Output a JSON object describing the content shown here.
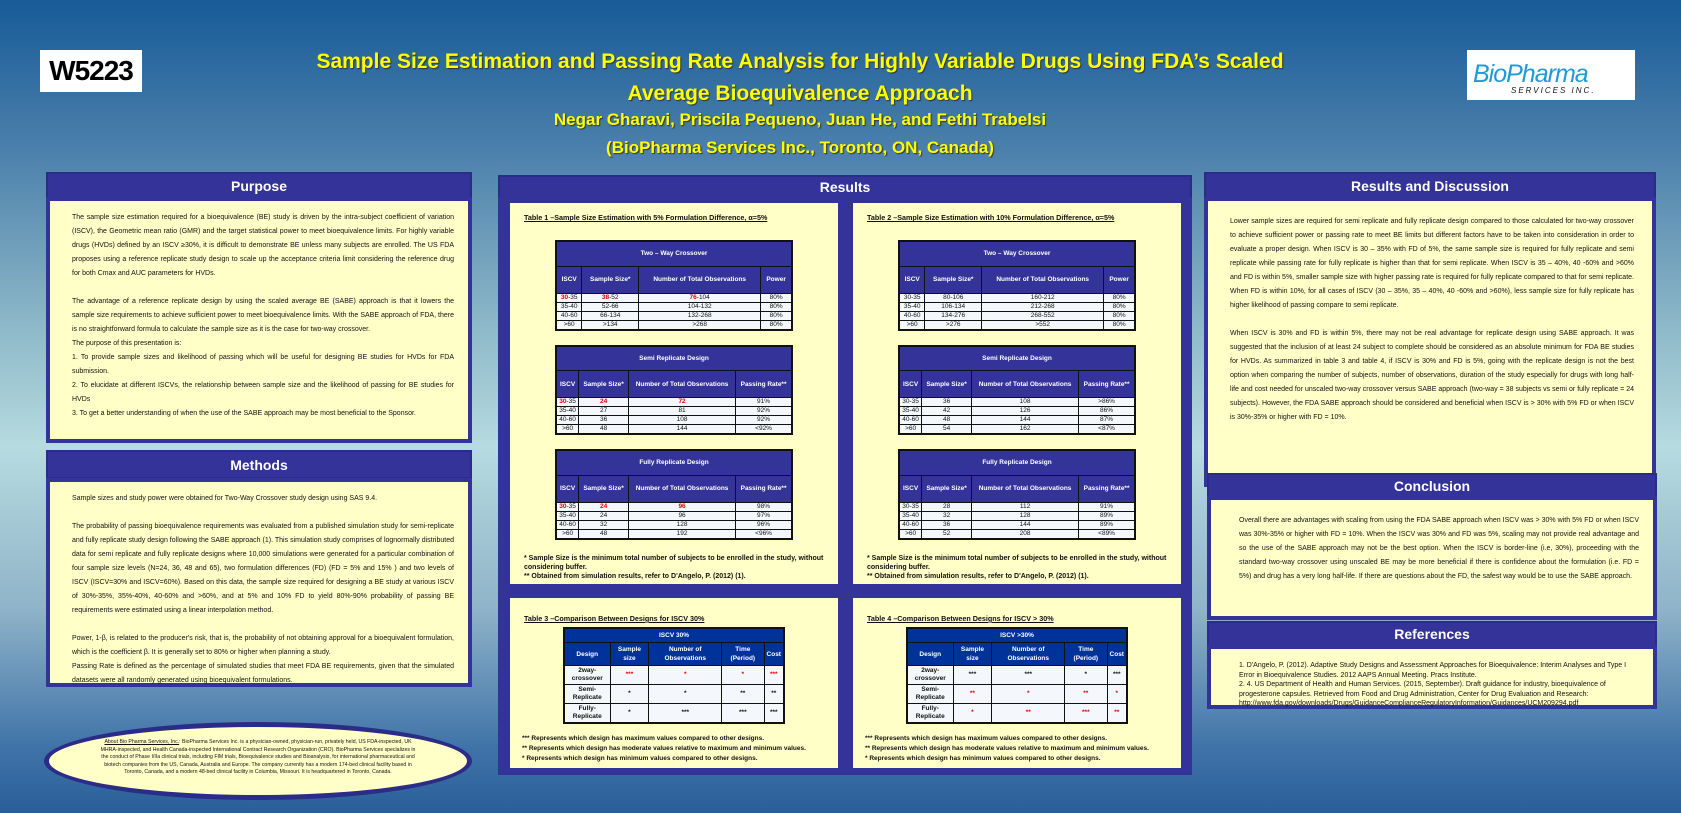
{
  "header": {
    "poster_id": "W5223",
    "title_line1": "Sample Size Estimation and Passing Rate Analysis for Highly Variable Drugs Using FDA’s Scaled",
    "title_line2": "Average Bioequivalence Approach",
    "authors": "Negar Gharavi, Priscila Pequeno,  Juan He, and Fethi Trabelsi",
    "affiliation": "(BioPharma Services Inc., Toronto, ON, Canada)",
    "logo_main": "BioPharma",
    "logo_sub": "SERVICES INC."
  },
  "purpose": {
    "heading": "Purpose",
    "p1": "The sample size estimation required for a bioequivalence (BE) study is driven by the intra-subject coefficient of variation (ISCV), the Geometric mean ratio (GMR) and the target statistical power to meet bioequivalence limits. For highly variable drugs (HVDs) defined by an ISCV ≥30%, it is difficult to demonstrate BE unless many subjects are enrolled. The US FDA proposes using a reference replicate study design to scale up the acceptance criteria limit considering the reference drug for both Cmax and AUC parameters for HVDs.",
    "p2": "The advantage of a reference replicate design by using the scaled average BE (SABE) approach is that it lowers the sample size requirements to achieve sufficient power to meet bioequivalence limits. With the SABE approach of FDA, there is no straightforward formula to calculate the sample size as it is the case for two-way crossover.",
    "p3": "The purpose of this presentation is:",
    "i1": "1. To provide sample sizes and likelihood of passing which will be useful for designing BE studies for HVDs for FDA submission.",
    "i2": "2. To elucidate at different ISCVs, the relationship between sample size and the likelihood of passing for BE studies for HVDs",
    "i3": "3. To get a better understanding of when the use of the SABE approach may be most beneficial to the Sponsor."
  },
  "methods": {
    "heading": "Methods",
    "p1": "Sample sizes and study power were obtained for Two-Way Crossover study design using SAS 9.4.",
    "p2": "The probability of passing bioequivalence requirements was evaluated from a published simulation study for semi-replicate and fully replicate study design following the SABE approach (1). This simulation study comprises of lognormally distributed data for semi replicate and fully replicate designs where 10,000 simulations were generated for a particular combination of four sample size levels (N=24, 36, 48 and 65), two formulation differences (FD) (FD = 5% and 15% ) and two levels of ISCV (ISCV=30% and ISCV=60%). Based on this data, the sample size required for designing a BE study at various ISCV of 30%-35%, 35%-40%, 40-60% and >60%, and at 5% and 10% FD to yield 80%-90% probability of passing BE requirements were estimated using a linear interpolation method.",
    "p3": "Power, 1-β, is related to the producer's risk, that is, the probability of not obtaining approval for a bioequivalent formulation, which is the coefficient β. It is generally set to 80% or higher when planning a study.",
    "p4": "Passing Rate is defined as the percentage of simulated studies that meet FDA BE requirements, given that the simulated datasets were all randomly generated using bioequivalent formulations."
  },
  "about": {
    "label": "About Bio Pharma Services, Inc.",
    "text": ": BioPharma Services Inc. is a physician-owned, physician-run, privately held, US FDA-inspected, UK MHRA-inspected, and Health Canada-inspected International Contract Research Organization (CRO).  BioPharma Services specializes in the conduct of Phase I/IIa clinical trials, including FIM trials, Bioequivalence studies and Bioanalysis, for international pharmaceutical and biotech companies from the US, Canada, Australia and Europe.  The company currently has a modern 174-bed clinical facility based in Toronto, Canada, and a modern 48-bed clinical facility in Columbia, Missouri. It is headquartered in Toronto, Canada."
  },
  "results": {
    "heading": "Results",
    "table1": {
      "caption": "Table 1 –Sample Size Estimation with 5% Formulation Difference, α=5%",
      "blocks": [
        {
          "title": "Two – Way Crossover",
          "cols": [
            "ISCV",
            "Sample Size*",
            "Number of Total Observations",
            "Power"
          ],
          "rows": [
            [
              "30-35",
              "38-52",
              "76-104",
              "80%"
            ],
            [
              "35-40",
              "52-66",
              "104-132",
              "80%"
            ],
            [
              "40-60",
              "66-134",
              "132-268",
              "80%"
            ],
            [
              ">60",
              ">134",
              ">268",
              "80%"
            ]
          ],
          "red": [
            "30",
            "38",
            "76",
            ""
          ]
        },
        {
          "title": "Semi Replicate Design",
          "cols": [
            "ISCV",
            "Sample Size*",
            "Number of Total Observations",
            "Passing Rate**"
          ],
          "rows": [
            [
              "30-35",
              "24",
              "72",
              "91%"
            ],
            [
              "35-40",
              "27",
              "81",
              "92%"
            ],
            [
              "40-60",
              "36",
              "108",
              "92%"
            ],
            [
              ">60",
              "48",
              "144",
              "<92%"
            ]
          ],
          "red": [
            "30",
            "24",
            "72",
            ""
          ]
        },
        {
          "title": "Fully Replicate Design",
          "cols": [
            "ISCV",
            "Sample Size*",
            "Number of Total Observations",
            "Passing Rate**"
          ],
          "rows": [
            [
              "30-35",
              "24",
              "96",
              "98%"
            ],
            [
              "35-40",
              "24",
              "96",
              "97%"
            ],
            [
              "40-60",
              "32",
              "128",
              "96%"
            ],
            [
              ">60",
              "48",
              "192",
              "<96%"
            ]
          ],
          "red": [
            "30",
            "24",
            "96",
            ""
          ]
        }
      ],
      "note1": "* Sample Size is the minimum total number of subjects to be enrolled in the study, without considering buffer.",
      "note2": "** Obtained from simulation results, refer to D'Angelo, P. (2012) (1)."
    },
    "table2": {
      "caption": "Table 2 –Sample Size Estimation with 10% Formulation Difference, α=5%",
      "blocks": [
        {
          "title": "Two – Way Crossover",
          "cols": [
            "ISCV",
            "Sample Size*",
            "Number of Total Observations",
            "Power"
          ],
          "rows": [
            [
              "30-35",
              "80-106",
              "160-212",
              "80%"
            ],
            [
              "35-40",
              "106-134",
              "212-268",
              "80%"
            ],
            [
              "40-60",
              "134-276",
              "268-552",
              "80%"
            ],
            [
              ">60",
              ">276",
              ">552",
              "80%"
            ]
          ],
          "red": [
            "",
            "",
            "",
            ""
          ]
        },
        {
          "title": "Semi Replicate Design",
          "cols": [
            "ISCV",
            "Sample Size*",
            "Number of Total Observations",
            "Passing Rate**"
          ],
          "rows": [
            [
              "30-35",
              "36",
              "108",
              ">86%"
            ],
            [
              "35-40",
              "42",
              "126",
              "86%"
            ],
            [
              "40-60",
              "48",
              "144",
              "87%"
            ],
            [
              ">60",
              "54",
              "162",
              "<87%"
            ]
          ],
          "red": [
            "",
            "",
            "",
            ""
          ]
        },
        {
          "title": "Fully Replicate Design",
          "cols": [
            "ISCV",
            "Sample Size*",
            "Number of Total Observations",
            "Passing Rate**"
          ],
          "rows": [
            [
              "30-35",
              "28",
              "112",
              "91%"
            ],
            [
              "35-40",
              "32",
              "128",
              "89%"
            ],
            [
              "40-60",
              "36",
              "144",
              "89%"
            ],
            [
              ">60",
              "52",
              "208",
              "<89%"
            ]
          ],
          "red": [
            "",
            "",
            "",
            ""
          ]
        }
      ],
      "note1": "* Sample Size is the minimum total number of subjects to be enrolled in the study, without considering buffer.",
      "note2": "** Obtained from simulation results, refer to D'Angelo, P. (2012) (1)."
    },
    "table3": {
      "caption": "Table 3 –Comparison Between Designs for ISCV 30%",
      "group": "ISCV 30%",
      "cols": [
        "Design",
        "Sample size",
        "Number of Observations",
        "Time (Period)",
        "Cost"
      ],
      "rows": [
        {
          "cells": [
            "2way-crossover",
            "***",
            "*",
            "*",
            "***"
          ],
          "red": true
        },
        {
          "cells": [
            "Semi-Replicate",
            "*",
            "*",
            "**",
            "**"
          ],
          "red": false
        },
        {
          "cells": [
            "Fully-Replicate",
            "*",
            "***",
            "***",
            "***"
          ],
          "red": false
        }
      ]
    },
    "table4": {
      "caption": "Table 4 –Comparison Between Designs for ISCV > 30%",
      "group": "ISCV >30%",
      "cols": [
        "Design",
        "Sample size",
        "Number of Observations",
        "Time (Period)",
        "Cost"
      ],
      "rows": [
        {
          "cells": [
            "2way-crossover",
            "***",
            "***",
            "*",
            "***"
          ],
          "red": false
        },
        {
          "cells": [
            "Semi-Replicate",
            "**",
            "*",
            "**",
            "*"
          ],
          "red": true
        },
        {
          "cells": [
            "Fully-Replicate",
            "*",
            "**",
            "***",
            "**"
          ],
          "red": true
        }
      ]
    },
    "legend": {
      "l1": "*** Represents which design has maximum values compared to other designs.",
      "l2": "** Represents which design has moderate values relative to maximum and minimum values.",
      "l3": "* Represents which design has minimum values compared to other designs."
    }
  },
  "discussion": {
    "heading": "Results and Discussion",
    "p1": "Lower sample sizes are required for semi replicate and fully replicate design compared to those calculated for two-way crossover to achieve sufficient power or passing rate to meet BE limits but different factors have to be taken into consideration in order to evaluate a proper design. When ISCV is 30 – 35% with FD of 5%, the same sample size is required for fully replicate and semi replicate while passing rate for fully replicate is higher than that for semi replicate. When ISCV is 35 – 40%, 40 -60% and >60% and FD is within 5%, smaller sample size with higher passing rate is required for fully replicate compared to that for semi replicate. When FD is within 10%, for all cases of ISCV (30 – 35%, 35 – 40%, 40 -60% and >60%), less sample size for fully replicate has higher likelihood of passing compare to semi replicate.",
    "p2": "When ISCV is 30% and FD is within 5%, there may not be real advantage for replicate design using SABE approach. It was suggested that the inclusion of at least 24 subject to complete should be considered as an absolute minimum for FDA BE studies for HVDs. As summarized in table 3 and table 4, if ISCV is 30% and FD is 5%, going with the replicate design is not the best option when comparing the number of subjects, number of observations, duration of the study especially for drugs with long half-life and cost needed for unscaled two-way crossover versus SABE approach (two-way = 38 subjects vs semi or fully replicate = 24 subjects). However, the FDA SABE approach should be considered and beneficial when ISCV is > 30% with 5% FD or when ISCV is 30%-35% or higher with FD = 10%."
  },
  "conclusion": {
    "heading": "Conclusion",
    "p1": "Overall there are advantages with scaling from using the FDA SABE approach when ISCV was > 30% with 5% FD or when ISCV was 30%-35% or higher with FD = 10%. When the ISCV was 30% and FD was 5%, scaling may not provide real advantage and so the use of the SABE approach may not be the best option. When the ISCV is border-line (i.e, 30%), proceeding with the standard two-way crossover using unscaled BE may be more beneficial if there is confidence about the formulation (i.e. FD = 5%) and drug has a very long half-life. If there are questions about the FD, the safest way would be to use the SABE approach."
  },
  "references": {
    "heading": "References",
    "r1": "1. D'Angelo, P. (2012). Adaptive Study Designs and Assessment Approaches for Bioequivalence: Interim Analyses and Type I Error in Bioequivalence Studies. 2012 AAPS Annual Meeting. Pracs Institute.",
    "r2": "2. 4. US Department of Health and Human Services. (2015, September). Draft guidance for industry, bioequivalence of progesterone capsules. Retrieved from Food and Drug Administration, Center for Drug Evaluation and Research: http://www.fda.gov/downloads/Drugs/GuidanceComplianceRegulatoryInformation/Guidances/UCM209294.pdf"
  }
}
